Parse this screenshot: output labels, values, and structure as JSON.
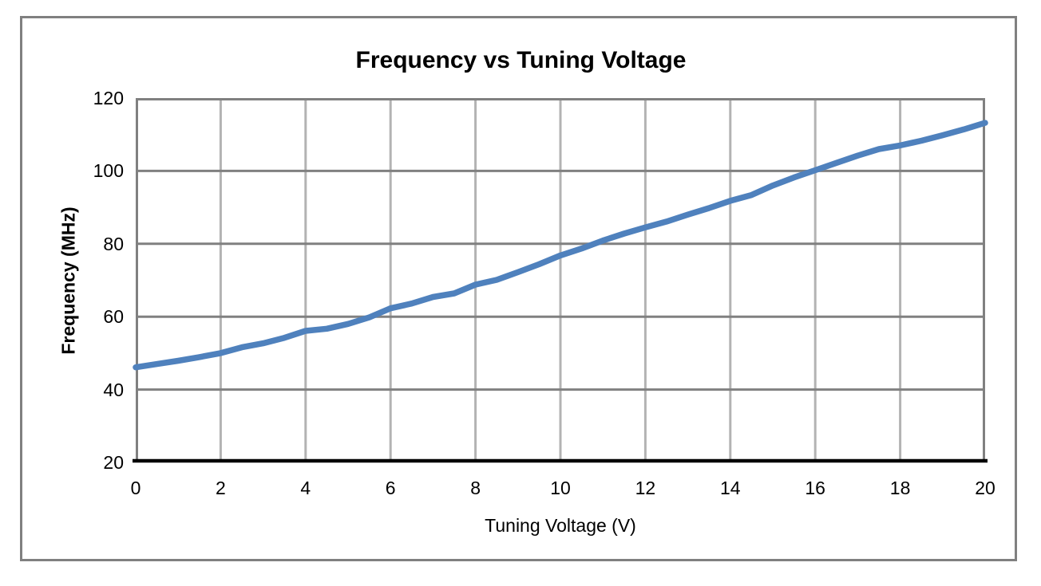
{
  "chart": {
    "colors": {
      "series_line": "#4F81BD",
      "horizontal_gridline": "#808080",
      "vertical_gridline": "#B3B3B3",
      "plot_border": "#808080",
      "axis_line": "#000000",
      "frame_border": "#808080",
      "text": "#000000",
      "background": "#FFFFFF"
    }
  },
  "chart_data": {
    "type": "line",
    "title": "Frequency vs Tuning Voltage",
    "xlabel": "Tuning Voltage (V)",
    "ylabel": "Frequency (MHz)",
    "xlim": [
      0,
      20
    ],
    "ylim": [
      20,
      120
    ],
    "x_ticks": [
      0,
      2,
      4,
      6,
      8,
      10,
      12,
      14,
      16,
      18,
      20
    ],
    "y_ticks": [
      20,
      40,
      60,
      80,
      100,
      120
    ],
    "grid": true,
    "legend": false,
    "series": [
      {
        "name": "Frequency",
        "color": "#4F81BD",
        "x": [
          0,
          0.5,
          1,
          1.5,
          2,
          2.5,
          3,
          3.5,
          4,
          4.5,
          5,
          5.5,
          6,
          6.5,
          7,
          7.5,
          8,
          8.5,
          9,
          9.5,
          10,
          10.5,
          11,
          11.5,
          12,
          12.5,
          13,
          13.5,
          14,
          14.5,
          15,
          15.5,
          16,
          16.5,
          17,
          17.5,
          18,
          18.5,
          19,
          19.5,
          20
        ],
        "y": [
          46.1,
          47.0,
          47.9,
          48.9,
          50.0,
          51.6,
          52.7,
          54.2,
          56.1,
          56.7,
          58.0,
          59.8,
          62.3,
          63.6,
          65.4,
          66.4,
          68.8,
          70.1,
          72.2,
          74.4,
          76.8,
          78.7,
          80.9,
          82.8,
          84.5,
          86.1,
          88.0,
          89.8,
          91.8,
          93.4,
          96.0,
          98.2,
          100.2,
          102.2,
          104.2,
          106.0,
          107.0,
          108.3,
          109.8,
          111.4,
          113.2
        ]
      }
    ]
  }
}
